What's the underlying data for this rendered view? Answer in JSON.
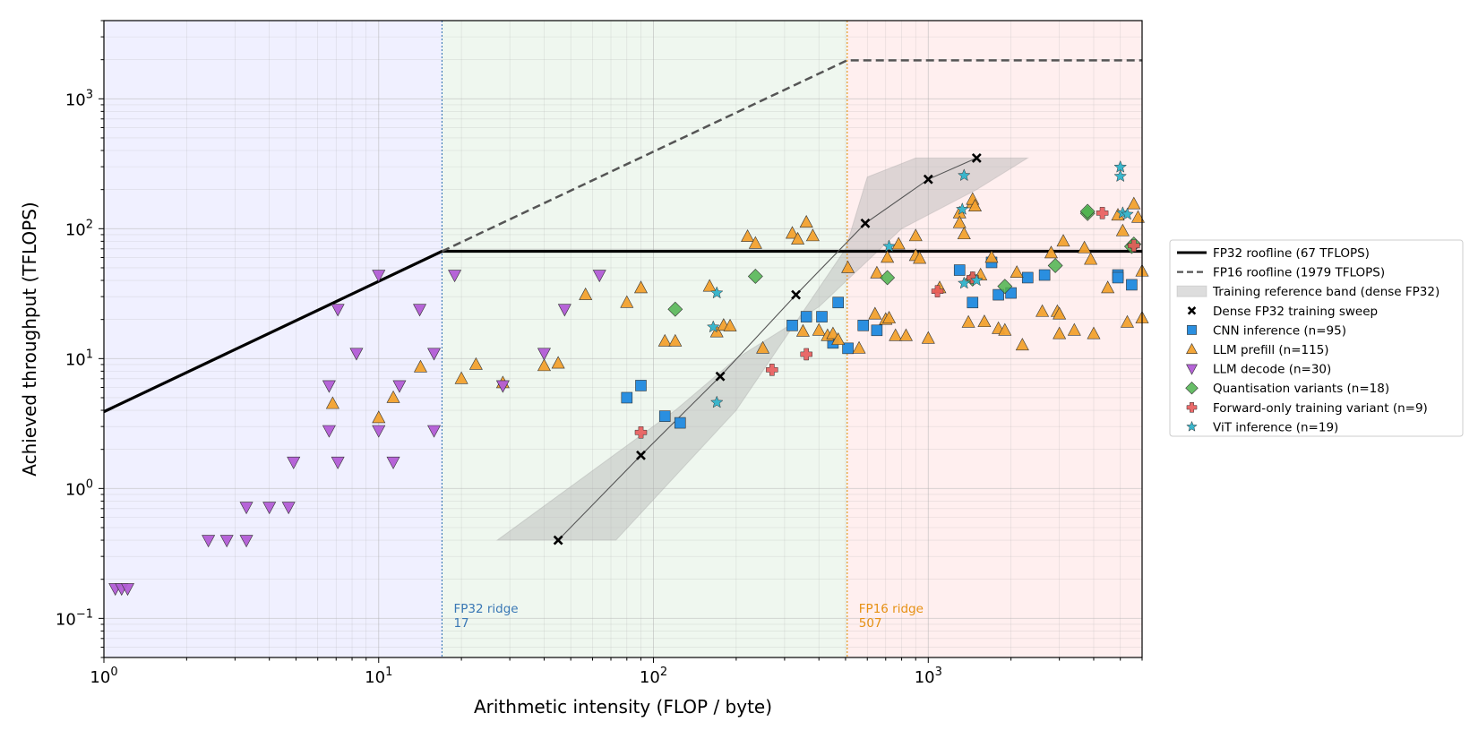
{
  "chart_data": {
    "type": "scatter",
    "title": "",
    "xlabel": "Arithmetic intensity (FLOP / byte)",
    "ylabel": "Achieved throughput (TFLOPS)",
    "x_scale": "log",
    "y_scale": "log",
    "xlim": [
      1,
      6000
    ],
    "ylim": [
      0.05,
      4000
    ],
    "x_ticks": [
      {
        "value": 1,
        "base": "10",
        "exp": "0"
      },
      {
        "value": 10,
        "base": "10",
        "exp": "1"
      },
      {
        "value": 100,
        "base": "10",
        "exp": "2"
      },
      {
        "value": 1000,
        "base": "10",
        "exp": "3"
      }
    ],
    "y_ticks": [
      {
        "value": 0.1,
        "base": "10",
        "exp": "−1"
      },
      {
        "value": 1,
        "base": "10",
        "exp": "0"
      },
      {
        "value": 10,
        "base": "10",
        "exp": "1"
      },
      {
        "value": 100,
        "base": "10",
        "exp": "2"
      },
      {
        "value": 1000,
        "base": "10",
        "exp": "3"
      }
    ],
    "grid": true,
    "legend_position": "right",
    "regions": [
      {
        "from": 1,
        "to": 17,
        "color": "#e8e8ff"
      },
      {
        "from": 17,
        "to": 507,
        "color": "#e6f2e6"
      },
      {
        "from": 507,
        "to": 6000,
        "color": "#ffe6e6"
      }
    ],
    "ridges": [
      {
        "label": "FP32 ridge",
        "value_text": "17",
        "x": 17,
        "color": "#3a78b5"
      },
      {
        "label": "FP16 ridge",
        "value_text": "507",
        "x": 507,
        "color": "#e69012"
      }
    ],
    "rooflines": [
      {
        "name": "FP32 roofline (67 TFLOPS)",
        "style": "solid",
        "color": "#000000",
        "points": [
          [
            1,
            3.9
          ],
          [
            17,
            67
          ],
          [
            6000,
            67
          ]
        ]
      },
      {
        "name": "FP16 roofline (1979 TFLOPS)",
        "style": "dashed",
        "color": "#555555",
        "points": [
          [
            17,
            67
          ],
          [
            507,
            1979
          ],
          [
            6000,
            1979
          ]
        ]
      }
    ],
    "band": {
      "name": "Training reference band (dense FP32)",
      "color": "#b4b4b4",
      "polygon": [
        [
          27,
          0.4
        ],
        [
          73,
          0.4
        ],
        [
          200,
          4
        ],
        [
          500,
          70
        ],
        [
          600,
          250
        ],
        [
          900,
          350
        ],
        [
          1500,
          350
        ],
        [
          2300,
          350
        ],
        [
          1500,
          200
        ],
        [
          800,
          100
        ],
        [
          400,
          25
        ],
        [
          200,
          10
        ],
        [
          120,
          4
        ]
      ]
    },
    "series": [
      {
        "name": "Dense FP32 training sweep",
        "marker": "x",
        "color": "#000000",
        "line": true,
        "points": [
          [
            45,
            0.4
          ],
          [
            90,
            1.8
          ],
          [
            175,
            7.3
          ],
          [
            330,
            31
          ],
          [
            590,
            110
          ],
          [
            1000,
            240
          ],
          [
            1500,
            350
          ]
        ]
      },
      {
        "name": "CNN inference (n=95)",
        "marker": "square",
        "color": "#2a8fe0",
        "points": [
          [
            80,
            5
          ],
          [
            90,
            6.2
          ],
          [
            110,
            3.6
          ],
          [
            125,
            3.2
          ],
          [
            320,
            18
          ],
          [
            360,
            21
          ],
          [
            410,
            21
          ],
          [
            450,
            13.2
          ],
          [
            470,
            27
          ],
          [
            510,
            12
          ],
          [
            580,
            18
          ],
          [
            650,
            16.5
          ],
          [
            1300,
            48
          ],
          [
            1450,
            27
          ],
          [
            1700,
            55
          ],
          [
            1800,
            31
          ],
          [
            2000,
            32
          ],
          [
            2300,
            42
          ],
          [
            2650,
            44
          ],
          [
            4900,
            44
          ],
          [
            4900,
            42
          ],
          [
            5500,
            37
          ]
        ]
      },
      {
        "name": "LLM prefill (n=115)",
        "marker": "triangle-up",
        "color": "#f2a12e",
        "points": [
          [
            6.8,
            4.5
          ],
          [
            10,
            3.5
          ],
          [
            11.3,
            5
          ],
          [
            14.2,
            8.6
          ],
          [
            20,
            7
          ],
          [
            22.6,
            9
          ],
          [
            28.3,
            6.5
          ],
          [
            40,
            8.8
          ],
          [
            45,
            9.2
          ],
          [
            56.6,
            31
          ],
          [
            80,
            27
          ],
          [
            90,
            35
          ],
          [
            110,
            13.6
          ],
          [
            120,
            13.6
          ],
          [
            160,
            36
          ],
          [
            170,
            16
          ],
          [
            180,
            18
          ],
          [
            190,
            17.8
          ],
          [
            220,
            87
          ],
          [
            235,
            77
          ],
          [
            250,
            12
          ],
          [
            320,
            92
          ],
          [
            335,
            83
          ],
          [
            350,
            16.2
          ],
          [
            360,
            112
          ],
          [
            380,
            88
          ],
          [
            400,
            16.5
          ],
          [
            430,
            15
          ],
          [
            450,
            15.5
          ],
          [
            470,
            14
          ],
          [
            510,
            50
          ],
          [
            560,
            12
          ],
          [
            640,
            22
          ],
          [
            650,
            45.5
          ],
          [
            700,
            20
          ],
          [
            710,
            60
          ],
          [
            720,
            20.5
          ],
          [
            760,
            15
          ],
          [
            780,
            76
          ],
          [
            830,
            15
          ],
          [
            900,
            88
          ],
          [
            900,
            62
          ],
          [
            930,
            59
          ],
          [
            1000,
            14.3
          ],
          [
            1100,
            35
          ],
          [
            1300,
            132
          ],
          [
            1300,
            111
          ],
          [
            1350,
            91
          ],
          [
            1400,
            19
          ],
          [
            1450,
            158
          ],
          [
            1450,
            168
          ],
          [
            1480,
            149
          ],
          [
            1550,
            44
          ],
          [
            1600,
            19.2
          ],
          [
            1700,
            60
          ],
          [
            1800,
            17
          ],
          [
            1900,
            16.5
          ],
          [
            2100,
            46
          ],
          [
            2200,
            12.7
          ],
          [
            2600,
            23
          ],
          [
            2800,
            65
          ],
          [
            2950,
            23
          ],
          [
            3000,
            15.5
          ],
          [
            3000,
            22
          ],
          [
            3100,
            80
          ],
          [
            3400,
            16.5
          ],
          [
            3700,
            71
          ],
          [
            3900,
            58
          ],
          [
            4000,
            15.5
          ],
          [
            4500,
            35
          ],
          [
            4900,
            127
          ],
          [
            5100,
            96
          ],
          [
            5300,
            19
          ],
          [
            5600,
            155
          ],
          [
            5800,
            122
          ],
          [
            6000,
            47
          ],
          [
            6000,
            20.5
          ]
        ]
      },
      {
        "name": "LLM decode (n=30)",
        "marker": "triangle-down",
        "color": "#b25cd6",
        "points": [
          [
            1.1,
            0.17
          ],
          [
            1.16,
            0.17
          ],
          [
            1.22,
            0.17
          ],
          [
            2.4,
            0.4
          ],
          [
            2.8,
            0.4
          ],
          [
            3.3,
            0.4
          ],
          [
            3.3,
            0.72
          ],
          [
            4,
            0.72
          ],
          [
            4.7,
            0.72
          ],
          [
            4.9,
            1.6
          ],
          [
            6.6,
            6.2
          ],
          [
            6.6,
            2.8
          ],
          [
            7.1,
            24
          ],
          [
            7.1,
            1.6
          ],
          [
            8.3,
            11
          ],
          [
            10,
            44
          ],
          [
            10,
            2.8
          ],
          [
            11.3,
            1.6
          ],
          [
            11.9,
            6.2
          ],
          [
            14.1,
            24
          ],
          [
            15.9,
            11
          ],
          [
            15.9,
            2.8
          ],
          [
            18.9,
            44
          ],
          [
            28.3,
            6.2
          ],
          [
            40,
            11
          ],
          [
            47.5,
            24
          ],
          [
            63.6,
            44
          ]
        ]
      },
      {
        "name": "Quantisation variants (n=18)",
        "marker": "diamond",
        "color": "#4eb34e",
        "points": [
          [
            120,
            24
          ],
          [
            235,
            43
          ],
          [
            710,
            42
          ],
          [
            1450,
            41
          ],
          [
            1900,
            36
          ],
          [
            2900,
            52
          ],
          [
            3800,
            131
          ],
          [
            3800,
            136
          ],
          [
            5500,
            73
          ],
          [
            5600,
            76
          ]
        ]
      },
      {
        "name": "Forward-only training variant (n=9)",
        "marker": "plus",
        "color": "#e85a5a",
        "points": [
          [
            90,
            2.7
          ],
          [
            270,
            8.2
          ],
          [
            360,
            10.8
          ],
          [
            1080,
            33
          ],
          [
            1450,
            42
          ],
          [
            4300,
            132
          ],
          [
            5600,
            74
          ]
        ]
      },
      {
        "name": "ViT inference (n=19)",
        "marker": "star",
        "color": "#3ab6cc",
        "points": [
          [
            165,
            17.5
          ],
          [
            170,
            32
          ],
          [
            170,
            4.6
          ],
          [
            720,
            73
          ],
          [
            1330,
            141
          ],
          [
            1350,
            257
          ],
          [
            1350,
            38
          ],
          [
            1500,
            40
          ],
          [
            5000,
            298
          ],
          [
            5000,
            253
          ],
          [
            5100,
            132
          ],
          [
            5300,
            129
          ]
        ]
      }
    ]
  }
}
